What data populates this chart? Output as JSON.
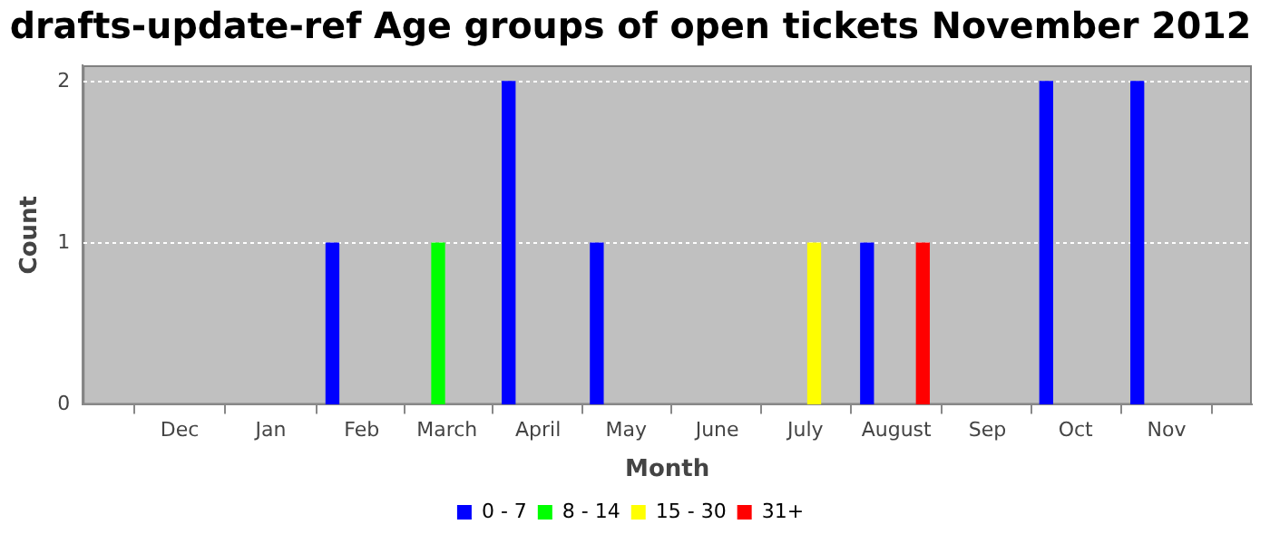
{
  "chart_data": {
    "type": "bar",
    "title": "drafts-update-ref Age groups of open tickets November 2012",
    "xlabel": "Month",
    "ylabel": "Count",
    "xlim": [
      "2011-10-29",
      "2012-11-30"
    ],
    "xticks": [
      {
        "value": "2011-12-01",
        "label": "Dec"
      },
      {
        "value": "2012-01-01",
        "label": "Jan"
      },
      {
        "value": "2012-02-01",
        "label": "Feb"
      },
      {
        "value": "2012-03-01",
        "label": "March"
      },
      {
        "value": "2012-04-01",
        "label": "April"
      },
      {
        "value": "2012-05-01",
        "label": "May"
      },
      {
        "value": "2012-06-01",
        "label": "June"
      },
      {
        "value": "2012-07-01",
        "label": "July"
      },
      {
        "value": "2012-08-01",
        "label": "August"
      },
      {
        "value": "2012-09-01",
        "label": "Sep"
      },
      {
        "value": "2012-10-01",
        "label": "Oct"
      },
      {
        "value": "2012-11-01",
        "label": "Nov"
      }
    ],
    "ylim": [
      0,
      2.1
    ],
    "yticks": [
      0,
      1,
      2
    ],
    "series": [
      {
        "name": "0 - 7",
        "color": "#0000ff",
        "x": [
          "2012-01-22",
          "2012-03-22",
          "2012-04-21",
          "2012-07-22",
          "2012-09-21",
          "2012-10-22"
        ],
        "values": [
          1,
          2,
          1,
          1,
          2,
          2
        ]
      },
      {
        "name": "8 - 14",
        "color": "#00ff00",
        "x": [
          "2012-02-27"
        ],
        "values": [
          1
        ]
      },
      {
        "name": "15 - 30",
        "color": "#ffff00",
        "x": [
          "2012-07-04"
        ],
        "values": [
          1
        ]
      },
      {
        "name": "31+",
        "color": "#ff0000",
        "x": [
          "2012-08-10"
        ],
        "values": [
          1
        ]
      }
    ],
    "grid": "y",
    "legend": "bottom"
  }
}
